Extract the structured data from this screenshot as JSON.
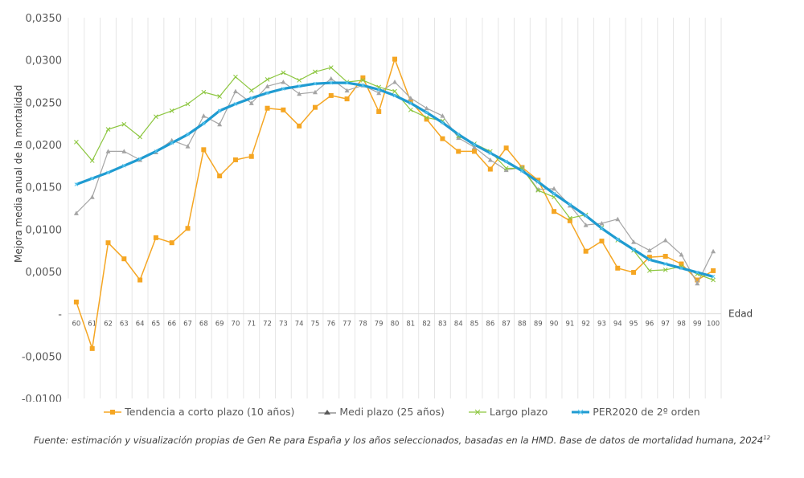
{
  "chart_data": {
    "type": "line",
    "title": "",
    "xlabel": "Edad",
    "ylabel": "Mejora media anual de la mortalidad",
    "ylim": [
      -0.01,
      0.035
    ],
    "yticks": [
      "0,0350",
      "0,0300",
      "0,0250",
      "0,0200",
      "0,0150",
      "0,0100",
      "0,0050",
      "-",
      "-0,0050",
      "-0,0100"
    ],
    "ytick_values": [
      0.035,
      0.03,
      0.025,
      0.02,
      0.015,
      0.01,
      0.005,
      0,
      -0.005,
      -0.01
    ],
    "grid": "vertical",
    "legend_position": "bottom",
    "categories": [
      "60",
      "61",
      "62",
      "63",
      "64",
      "65",
      "66",
      "67",
      "68",
      "69",
      "70",
      "71",
      "72",
      "73",
      "74",
      "75",
      "76",
      "77",
      "78",
      "79",
      "80",
      "81",
      "82",
      "83",
      "84",
      "85",
      "86",
      "87",
      "88",
      "89",
      "90",
      "91",
      "92",
      "93",
      "94",
      "95",
      "96",
      "97",
      "98",
      "99",
      "100"
    ],
    "series": [
      {
        "name": "Tendencia a corto plazo (10 años)",
        "color": "#F5A623",
        "marker": "square",
        "values": [
          0.0014,
          -0.0041,
          0.0084,
          0.0065,
          0.004,
          0.009,
          0.0084,
          0.0101,
          0.0194,
          0.0163,
          0.0182,
          0.0186,
          0.0243,
          0.0241,
          0.0222,
          0.0244,
          0.0258,
          0.0254,
          0.0279,
          0.0239,
          0.0301,
          0.0251,
          0.023,
          0.0207,
          0.0192,
          0.0192,
          0.0171,
          0.0196,
          0.0173,
          0.0158,
          0.0121,
          0.011,
          0.0074,
          0.0086,
          0.0054,
          0.0049,
          0.0067,
          0.0068,
          0.0059,
          0.004,
          0.0051
        ]
      },
      {
        "name": "Medi plazo (25 años)",
        "color": "#A5A5A5",
        "marker": "triangle",
        "values": [
          0.0119,
          0.0138,
          0.0192,
          0.0192,
          0.0182,
          0.0191,
          0.0205,
          0.0198,
          0.0234,
          0.0224,
          0.0263,
          0.0249,
          0.0269,
          0.0274,
          0.026,
          0.0262,
          0.0278,
          0.0264,
          0.027,
          0.0261,
          0.0274,
          0.0255,
          0.0243,
          0.0234,
          0.0208,
          0.0197,
          0.0182,
          0.017,
          0.0173,
          0.0147,
          0.0148,
          0.0128,
          0.0105,
          0.0107,
          0.0112,
          0.0085,
          0.0075,
          0.0087,
          0.007,
          0.0036,
          0.0074
        ]
      },
      {
        "name": "Largo plazo",
        "color": "#8CC63F",
        "marker": "x",
        "values": [
          0.0203,
          0.0181,
          0.0218,
          0.0224,
          0.0209,
          0.0233,
          0.024,
          0.0248,
          0.0262,
          0.0257,
          0.028,
          0.0264,
          0.0277,
          0.0285,
          0.0276,
          0.0286,
          0.0291,
          0.0274,
          0.0276,
          0.0268,
          0.0263,
          0.0241,
          0.0232,
          0.0228,
          0.021,
          0.0201,
          0.0192,
          0.0172,
          0.0172,
          0.0146,
          0.0138,
          0.0113,
          0.0117,
          0.0102,
          0.0087,
          0.0075,
          0.0051,
          0.0052,
          0.0056,
          0.0047,
          0.004
        ]
      },
      {
        "name": "PER2020 de 2º orden",
        "color": "#1F9BD1",
        "marker": "x",
        "values": [
          0.0153,
          0.016,
          0.0167,
          0.0175,
          0.0183,
          0.0192,
          0.0202,
          0.0212,
          0.0225,
          0.024,
          0.0248,
          0.0255,
          0.0261,
          0.0266,
          0.0269,
          0.0272,
          0.0273,
          0.0273,
          0.027,
          0.0265,
          0.0258,
          0.0249,
          0.0238,
          0.0226,
          0.0212,
          0.02,
          0.019,
          0.018,
          0.0169,
          0.0156,
          0.0142,
          0.0129,
          0.0116,
          0.0101,
          0.0088,
          0.0076,
          0.0064,
          0.0059,
          0.0054,
          0.0049,
          0.0044
        ]
      }
    ]
  },
  "legend": [
    {
      "label": "Tendencia a corto plazo (10 años)",
      "color": "#F5A623",
      "marker": "square"
    },
    {
      "label": "Medi plazo (25 años)",
      "color": "#A5A5A5",
      "marker": "triangle"
    },
    {
      "label": "Largo plazo",
      "color": "#8CC63F",
      "marker": "x"
    },
    {
      "label": "PER2020 de 2º orden",
      "color": "#1F9BD1",
      "marker": "x"
    }
  ],
  "footnote": {
    "text": "Fuente: estimación y visualización propias de Gen Re para España y los años seleccionados, basadas en la HMD. Base de datos de mortalidad humana, 2024",
    "superscript": "12"
  }
}
